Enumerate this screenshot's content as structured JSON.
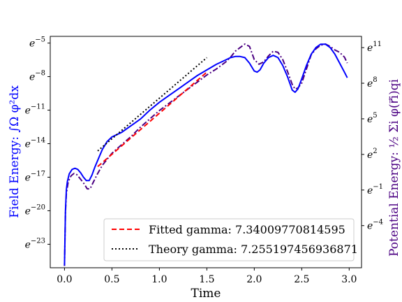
{
  "chart_data": {
    "type": "line",
    "xlabel": "Time",
    "ylabel_left": "Field Energy: ∫Ω φ²dx",
    "ylabel_right": "Potential Energy: ½ Σi φ(r⃗i)qi",
    "colors": {
      "field": "#0000ff",
      "potential": "#4b0082",
      "fitted": "#ff0000",
      "theory": "#000000"
    },
    "xlim": [
      -0.15,
      3.13
    ],
    "xticks": [
      {
        "v": 0.0,
        "label": "0.0"
      },
      {
        "v": 0.5,
        "label": "0.5"
      },
      {
        "v": 1.0,
        "label": "1.0"
      },
      {
        "v": 1.5,
        "label": "1.5"
      },
      {
        "v": 2.0,
        "label": "2.0"
      },
      {
        "v": 2.5,
        "label": "2.5"
      },
      {
        "v": 3.0,
        "label": "3.0"
      }
    ],
    "left_axis": {
      "scale": "log_e_exponent",
      "ylim": [
        -25.1,
        -4.4
      ],
      "ticks": [
        {
          "v": -5,
          "base": "e",
          "exp": "−5"
        },
        {
          "v": -8,
          "base": "e",
          "exp": "−8"
        },
        {
          "v": -11,
          "base": "e",
          "exp": "−11"
        },
        {
          "v": -14,
          "base": "e",
          "exp": "−14"
        },
        {
          "v": -17,
          "base": "e",
          "exp": "−17"
        },
        {
          "v": -20,
          "base": "e",
          "exp": "−20"
        },
        {
          "v": -23,
          "base": "e",
          "exp": "−23"
        }
      ]
    },
    "right_axis": {
      "scale": "log_e_exponent",
      "ylim": [
        -7.55,
        11.95
      ],
      "ticks": [
        {
          "v": 11,
          "base": "e",
          "exp": "11"
        },
        {
          "v": 8,
          "base": "e",
          "exp": "8"
        },
        {
          "v": 5,
          "base": "e",
          "exp": "5"
        },
        {
          "v": 2,
          "base": "e",
          "exp": "2"
        },
        {
          "v": -1,
          "base": "e",
          "exp": "−1"
        },
        {
          "v": -4,
          "base": "e",
          "exp": "−4"
        }
      ]
    },
    "legend": {
      "placement": "lower-right",
      "entries": [
        {
          "label": "Fitted gamma: 7.34009770814595",
          "style": "dashed",
          "color": "#ff0000"
        },
        {
          "label": "Theory gamma: 7.255197456936871",
          "style": "dotted",
          "color": "#000000"
        }
      ]
    },
    "series": [
      {
        "id": "field",
        "axis": "left",
        "style": "solid",
        "color": "#0000ff",
        "x": [
          0.0,
          0.01,
          0.02,
          0.03,
          0.05,
          0.08,
          0.11,
          0.14,
          0.17,
          0.2,
          0.23,
          0.26,
          0.29,
          0.32,
          0.36,
          0.4,
          0.45,
          0.5,
          0.55,
          0.6,
          0.7,
          0.8,
          0.9,
          1.0,
          1.1,
          1.2,
          1.3,
          1.4,
          1.5,
          1.6,
          1.7,
          1.75,
          1.8,
          1.85,
          1.9,
          1.95,
          2.0,
          2.03,
          2.06,
          2.1,
          2.15,
          2.2,
          2.25,
          2.3,
          2.35,
          2.4,
          2.43,
          2.46,
          2.5,
          2.55,
          2.6,
          2.65,
          2.7,
          2.75,
          2.8,
          2.85,
          2.9,
          2.95,
          2.98
        ],
        "y": [
          -24.9,
          -20.0,
          -18.1,
          -17.4,
          -16.7,
          -16.3,
          -16.2,
          -16.3,
          -16.6,
          -17.0,
          -17.3,
          -17.3,
          -16.8,
          -16.1,
          -15.3,
          -14.5,
          -13.8,
          -13.4,
          -13.2,
          -13.0,
          -12.4,
          -11.8,
          -11.0,
          -10.3,
          -9.7,
          -9.1,
          -8.5,
          -7.9,
          -7.4,
          -6.9,
          -6.5,
          -6.3,
          -6.2,
          -6.2,
          -6.3,
          -6.8,
          -7.5,
          -7.6,
          -7.4,
          -6.8,
          -6.3,
          -6.1,
          -6.3,
          -7.0,
          -8.0,
          -9.2,
          -9.4,
          -9.1,
          -8.2,
          -7.0,
          -6.0,
          -5.4,
          -5.1,
          -5.1,
          -5.4,
          -6.0,
          -6.8,
          -7.6,
          -8.1
        ]
      },
      {
        "id": "potential",
        "axis": "right",
        "style": "dashdot",
        "color": "#4b0082",
        "x": [
          0.0,
          0.01,
          0.02,
          0.04,
          0.07,
          0.1,
          0.13,
          0.16,
          0.2,
          0.24,
          0.27,
          0.3,
          0.35,
          0.4,
          0.5,
          0.6,
          0.7,
          0.8,
          0.9,
          1.0,
          1.1,
          1.2,
          1.3,
          1.4,
          1.5,
          1.6,
          1.7,
          1.75,
          1.8,
          1.85,
          1.9,
          1.95,
          2.0,
          2.05,
          2.1,
          2.15,
          2.2,
          2.25,
          2.3,
          2.35,
          2.4,
          2.43,
          2.46,
          2.5,
          2.55,
          2.6,
          2.65,
          2.7,
          2.75,
          2.8,
          2.85,
          2.9,
          2.95,
          2.98
        ],
        "y": [
          -7.4,
          -2.9,
          -1.3,
          -0.3,
          0.2,
          0.4,
          0.3,
          0.0,
          -0.4,
          -0.9,
          -0.9,
          -0.4,
          0.4,
          1.1,
          2.1,
          2.8,
          3.5,
          4.3,
          5.0,
          5.7,
          6.3,
          6.9,
          7.5,
          8.1,
          8.7,
          9.2,
          9.8,
          10.2,
          10.7,
          11.0,
          11.3,
          11.1,
          10.0,
          9.6,
          9.8,
          10.3,
          10.7,
          10.6,
          10.0,
          9.0,
          7.9,
          7.5,
          7.6,
          8.0,
          9.2,
          10.4,
          10.9,
          11.2,
          11.3,
          11.1,
          10.8,
          10.6,
          10.2,
          9.7
        ]
      },
      {
        "id": "fitted",
        "axis": "left",
        "style": "dashed",
        "color": "#ff0000",
        "x": [
          0.35,
          1.5
        ],
        "y": [
          -16.05,
          -7.6
        ]
      },
      {
        "id": "theory",
        "axis": "left",
        "style": "dotted",
        "color": "#000000",
        "x": [
          0.35,
          1.5
        ],
        "y": [
          -14.65,
          -6.3
        ]
      }
    ]
  }
}
